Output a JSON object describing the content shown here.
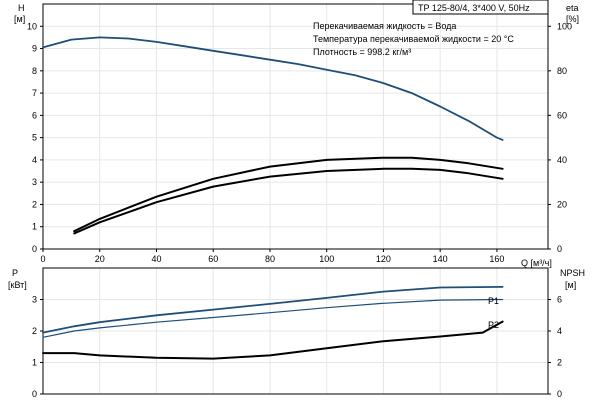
{
  "chart_data": [
    {
      "type": "line",
      "title": "TP 125-80/4, 3*400 V, 50Hz",
      "annotations": [
        "Перекачиваемая жидкость = Вода",
        "Температура перекачиваемой жидкости = 20 °C",
        "Плотность = 998.2 кг/м³"
      ],
      "xlabel": "Q [м³/ч]",
      "x_ticks": [
        "0",
        "20",
        "40",
        "60",
        "80",
        "100",
        "120",
        "140",
        "160"
      ],
      "xlim": [
        0,
        178
      ],
      "y_left": {
        "label_line1": "H",
        "label_line2": "[м]",
        "ylim": [
          0,
          11
        ],
        "ticks": [
          "0",
          "1",
          "2",
          "3",
          "4",
          "5",
          "6",
          "7",
          "8",
          "9",
          "10"
        ]
      },
      "y_right": {
        "label_line1": "eta",
        "label_line2": "[%]",
        "ylim": [
          0,
          110
        ],
        "ticks": [
          "0",
          "20",
          "40",
          "60",
          "80",
          "100"
        ]
      },
      "grid": true,
      "series": [
        {
          "axis": "left",
          "color": "#1f4e79",
          "x": [
            0,
            10,
            20,
            30,
            40,
            50,
            60,
            70,
            80,
            90,
            100,
            110,
            120,
            130,
            140,
            150,
            160,
            162
          ],
          "y": [
            9.05,
            9.4,
            9.5,
            9.45,
            9.3,
            9.1,
            8.9,
            8.7,
            8.5,
            8.3,
            8.05,
            7.8,
            7.45,
            7.0,
            6.4,
            5.75,
            5.0,
            4.9
          ]
        },
        {
          "axis": "right",
          "color": "#000000",
          "x": [
            11,
            20,
            40,
            60,
            80,
            100,
            120,
            130,
            140,
            150,
            162
          ],
          "y": [
            8,
            13.5,
            23.5,
            31.5,
            37,
            40,
            41,
            41,
            40,
            38.5,
            36
          ]
        },
        {
          "axis": "right",
          "color": "#000000",
          "x": [
            11,
            20,
            40,
            60,
            80,
            100,
            120,
            130,
            140,
            150,
            162
          ],
          "y": [
            7,
            12,
            21,
            28,
            32.5,
            35,
            36,
            36,
            35.5,
            34,
            31.5
          ]
        }
      ]
    },
    {
      "type": "line",
      "xlim": [
        0,
        178
      ],
      "y_left": {
        "label_line1": "P",
        "label_line2": "[кВт]",
        "ylim": [
          0,
          4
        ],
        "ticks": [
          "0",
          "1",
          "2",
          "3"
        ]
      },
      "y_right": {
        "label_line1": "NPSH",
        "label_line2": "[м]",
        "ylim": [
          0,
          8
        ],
        "ticks": [
          "0",
          "2",
          "4",
          "6"
        ]
      },
      "grid": true,
      "series": [
        {
          "name": "P1",
          "axis": "left",
          "color": "#1f4e79",
          "x": [
            0,
            11,
            20,
            40,
            60,
            80,
            100,
            120,
            140,
            162
          ],
          "y": [
            1.95,
            2.15,
            2.28,
            2.5,
            2.68,
            2.86,
            3.05,
            3.25,
            3.38,
            3.4
          ]
        },
        {
          "name": "P2",
          "axis": "left",
          "color": "#1f4e79",
          "x": [
            0,
            11,
            20,
            40,
            60,
            80,
            100,
            120,
            140,
            162
          ],
          "y": [
            1.8,
            2.0,
            2.1,
            2.28,
            2.43,
            2.58,
            2.74,
            2.88,
            2.98,
            3.0
          ]
        },
        {
          "name": "",
          "axis": "right",
          "color": "#000000",
          "x": [
            0,
            11,
            20,
            40,
            60,
            80,
            100,
            120,
            140,
            155,
            162
          ],
          "y": [
            2.6,
            2.6,
            2.45,
            2.3,
            2.25,
            2.45,
            2.9,
            3.35,
            3.65,
            3.9,
            4.6
          ]
        }
      ]
    }
  ]
}
